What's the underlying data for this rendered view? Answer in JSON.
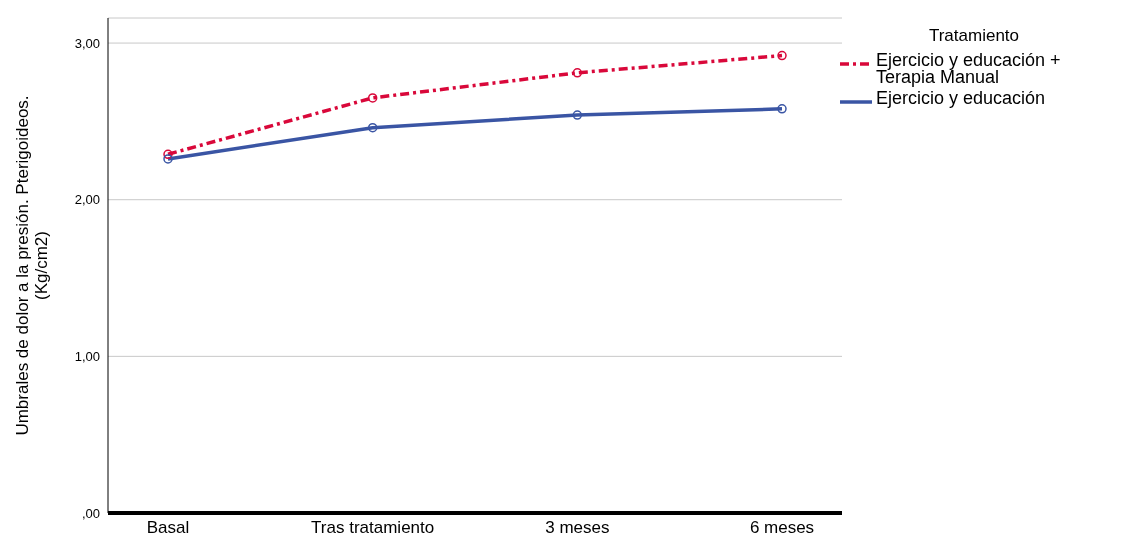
{
  "chart_data": {
    "type": "line",
    "ylabel": "Umbrales de dolor a la presión. Pterigoideos. (Kg/cm2)",
    "legend_title": "Tratamiento",
    "categories": [
      "Basal",
      "Tras tratamiento",
      "3 meses",
      "6 meses"
    ],
    "series": [
      {
        "name": "Ejercicio y educación + Terapia Manual",
        "color": "#d9083a",
        "line_style": "dashed",
        "values": [
          2.29,
          2.65,
          2.81,
          2.92
        ]
      },
      {
        "name": "Ejercicio y educación",
        "color": "#3a55a4",
        "line_style": "solid",
        "values": [
          2.26,
          2.46,
          2.54,
          2.58
        ]
      }
    ],
    "ylim": [
      0,
      3.16
    ],
    "yticks": [
      {
        "value": 0,
        "label": ",00"
      },
      {
        "value": 1,
        "label": "1,00"
      },
      {
        "value": 2,
        "label": "2,00"
      },
      {
        "value": 3,
        "label": "3,00"
      }
    ],
    "grid": "y",
    "legend": "top right",
    "marker": "circle"
  }
}
